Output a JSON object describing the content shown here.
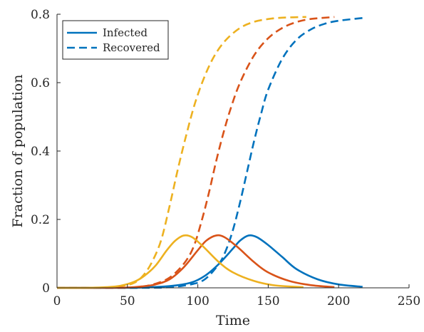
{
  "chart_data": {
    "type": "line",
    "xlabel": "Time",
    "ylabel": "Fraction of population",
    "xlim": [
      0,
      250
    ],
    "ylim": [
      0,
      0.8
    ],
    "xticks": [
      0,
      50,
      100,
      150,
      200,
      250
    ],
    "yticks": [
      0,
      0.2,
      0.4,
      0.6,
      0.8
    ],
    "xtick_labels": [
      "0",
      "50",
      "100",
      "150",
      "200",
      "250"
    ],
    "ytick_labels": [
      "0",
      "0.2",
      "0.4",
      "0.6",
      "0.8"
    ],
    "grid": false,
    "legend": {
      "placement": "top-left",
      "entries": [
        {
          "label": "Infected",
          "style": "solid"
        },
        {
          "label": "Recovered",
          "style": "dashed"
        }
      ]
    },
    "colors": {
      "blue": "#0072BD",
      "orange": "#D95319",
      "yellow": "#EDB120"
    },
    "series": [
      {
        "color": "#0072BD",
        "variable": "Infected",
        "style": "solid",
        "x": [
          0,
          40,
          60,
          80,
          95,
          105,
          115,
          125,
          130,
          136,
          142,
          150,
          160,
          170,
          185,
          200,
          217
        ],
        "y": [
          0,
          0,
          0.001,
          0.005,
          0.015,
          0.035,
          0.07,
          0.115,
          0.138,
          0.153,
          0.148,
          0.125,
          0.09,
          0.055,
          0.025,
          0.01,
          0.003
        ]
      },
      {
        "color": "#0072BD",
        "variable": "Recovered",
        "style": "dashed",
        "x": [
          0,
          60,
          80,
          95,
          105,
          115,
          120,
          125,
          130,
          135,
          140,
          145,
          150,
          160,
          170,
          180,
          190,
          200,
          217
        ],
        "y": [
          0,
          0,
          0.002,
          0.01,
          0.025,
          0.07,
          0.11,
          0.17,
          0.25,
          0.34,
          0.43,
          0.51,
          0.58,
          0.67,
          0.725,
          0.755,
          0.772,
          0.781,
          0.789
        ]
      },
      {
        "color": "#D95319",
        "variable": "Infected",
        "style": "solid",
        "x": [
          0,
          30,
          50,
          60,
          70,
          80,
          90,
          100,
          106,
          113,
          119,
          128,
          140,
          150,
          165,
          180,
          197
        ],
        "y": [
          0,
          0,
          0.001,
          0.004,
          0.01,
          0.025,
          0.06,
          0.11,
          0.138,
          0.153,
          0.148,
          0.12,
          0.075,
          0.045,
          0.02,
          0.008,
          0.002
        ]
      },
      {
        "color": "#D95319",
        "variable": "Recovered",
        "style": "dashed",
        "x": [
          0,
          50,
          60,
          70,
          80,
          90,
          97,
          103,
          108,
          113,
          118,
          123,
          130,
          140,
          150,
          160,
          170,
          180,
          197
        ],
        "y": [
          0,
          0,
          0.003,
          0.012,
          0.03,
          0.07,
          0.12,
          0.2,
          0.28,
          0.37,
          0.45,
          0.52,
          0.6,
          0.68,
          0.73,
          0.76,
          0.777,
          0.786,
          0.792
        ]
      },
      {
        "color": "#EDB120",
        "variable": "Infected",
        "style": "solid",
        "x": [
          0,
          20,
          35,
          45,
          55,
          62,
          70,
          78,
          84,
          90,
          96,
          104,
          115,
          125,
          140,
          155,
          175
        ],
        "y": [
          0,
          0,
          0.002,
          0.006,
          0.018,
          0.035,
          0.065,
          0.11,
          0.138,
          0.153,
          0.148,
          0.12,
          0.075,
          0.045,
          0.02,
          0.007,
          0.002
        ]
      },
      {
        "color": "#EDB120",
        "variable": "Recovered",
        "style": "dashed",
        "x": [
          0,
          30,
          45,
          55,
          62,
          68,
          74,
          80,
          86,
          92,
          98,
          105,
          112,
          120,
          130,
          140,
          150,
          160,
          177
        ],
        "y": [
          0,
          0,
          0.005,
          0.015,
          0.04,
          0.08,
          0.14,
          0.24,
          0.35,
          0.45,
          0.54,
          0.62,
          0.68,
          0.725,
          0.76,
          0.778,
          0.786,
          0.79,
          0.792
        ]
      }
    ]
  }
}
